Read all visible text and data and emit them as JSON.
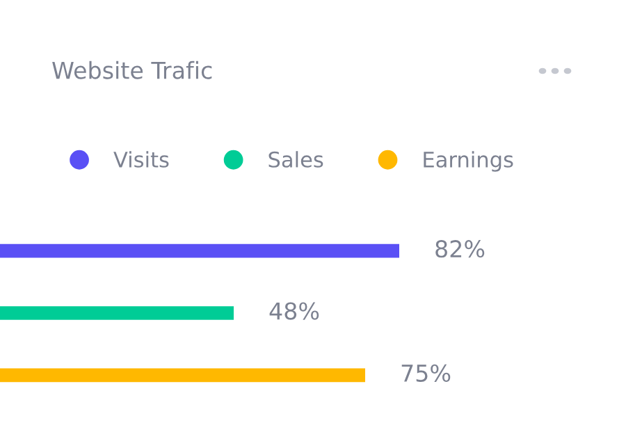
{
  "chart_data": {
    "type": "bar",
    "orientation": "horizontal",
    "stacked": true,
    "title": "Website Trafic",
    "categories": [
      null,
      null,
      null
    ],
    "series": [
      {
        "name": "Visits",
        "color": "#5a50f5",
        "values": [
          82,
          null,
          null
        ],
        "value_labels": [
          "82%",
          null,
          null
        ]
      },
      {
        "name": "Sales",
        "color": "#00cc96",
        "values": [
          null,
          48,
          null
        ],
        "value_labels": [
          null,
          "48%",
          null
        ]
      },
      {
        "name": "Earnings",
        "color": "#ffb800",
        "values": [
          null,
          null,
          75
        ],
        "value_labels": [
          null,
          null,
          "75%"
        ]
      }
    ],
    "legend": "top",
    "marker": "circle"
  }
}
